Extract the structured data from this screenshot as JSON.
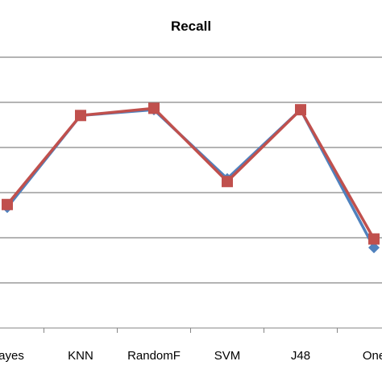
{
  "chart_data": {
    "type": "line",
    "title": "Recall",
    "categories": [
      "Bayes",
      "KNN",
      "RandomF",
      "SVM",
      "J48",
      "One"
    ],
    "series": [
      {
        "values": [
          0.52,
          0.84,
          0.86,
          0.62,
          0.86,
          0.38
        ],
        "color": "#4f81bd",
        "marker": "diamond"
      },
      {
        "values": [
          0.53,
          0.84,
          0.865,
          0.61,
          0.86,
          0.41
        ],
        "color": "#c0504d",
        "marker": "square"
      }
    ],
    "ylim": [
      0.1,
      1.2
    ],
    "grid": true,
    "legend": "none"
  }
}
